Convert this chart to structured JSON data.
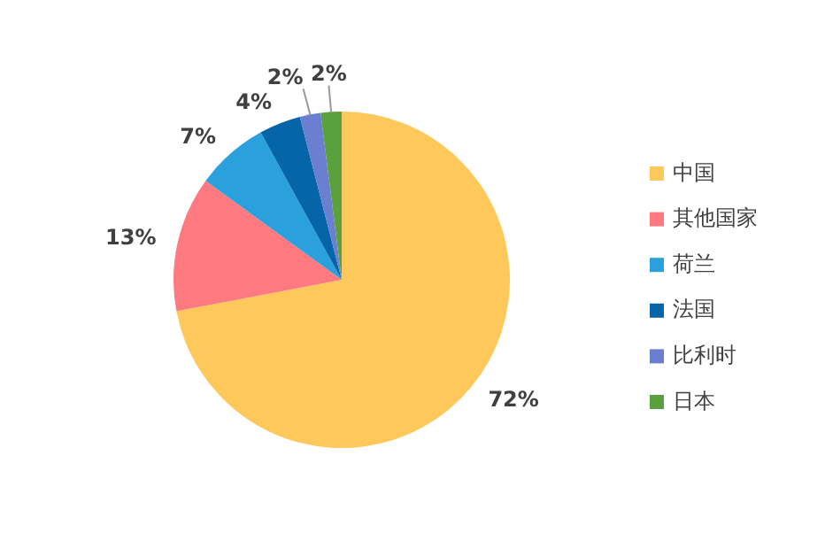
{
  "chart_data": {
    "type": "pie",
    "categories": [
      "中国",
      "其他国家",
      "荷兰",
      "法国",
      "比利时",
      "日本"
    ],
    "values": [
      72,
      13,
      7,
      4,
      2,
      2
    ],
    "colors": [
      "#ffc85a",
      "#ff7a80",
      "#2aa0dd",
      "#0565a8",
      "#6a7fcf",
      "#5aa03c"
    ],
    "value_labels": [
      "72%",
      "13%",
      "7%",
      "4%",
      "2%",
      "2%"
    ],
    "legend": "right"
  }
}
